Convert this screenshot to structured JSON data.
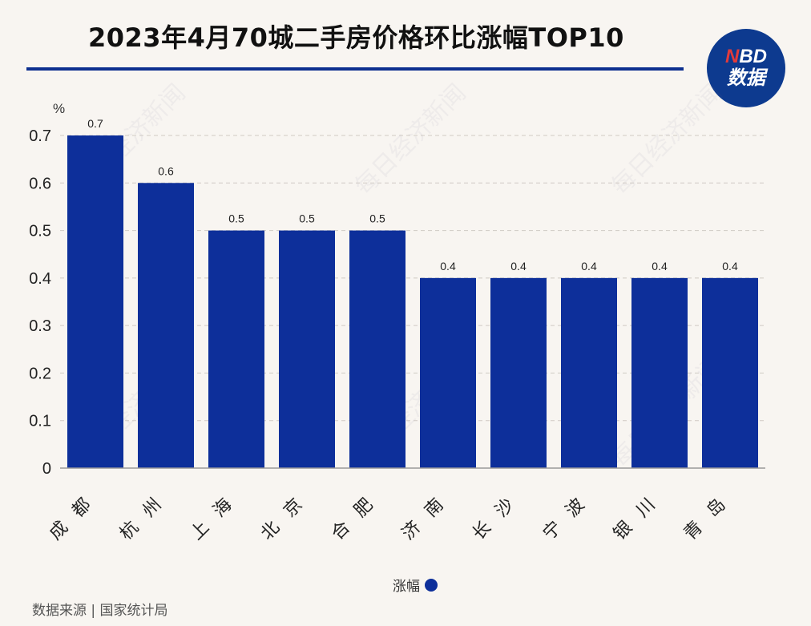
{
  "header": {
    "title": "2023年4月70城二手房价格环比涨幅TOP10",
    "logo_line1_n": "N",
    "logo_line1_rest": "BD",
    "logo_line2": "数据"
  },
  "watermark_text": "每日经济新闻",
  "legend": {
    "label": "涨幅",
    "color": "#0d2f9a"
  },
  "source": "数据来源 | 国家统计局",
  "chart_data": {
    "type": "bar",
    "title": "2023年4月70城二手房价格环比涨幅TOP10",
    "unit": "%",
    "categories": [
      "成都",
      "杭州",
      "上海",
      "北京",
      "合肥",
      "济南",
      "长沙",
      "宁波",
      "银川",
      "青岛"
    ],
    "series": [
      {
        "name": "涨幅",
        "values": [
          0.7,
          0.6,
          0.5,
          0.5,
          0.5,
          0.4,
          0.4,
          0.4,
          0.4,
          0.4
        ]
      }
    ],
    "data_labels": [
      "0.7",
      "0.6",
      "0.5",
      "0.5",
      "0.5",
      "0.4",
      "0.4",
      "0.4",
      "0.4",
      "0.4"
    ],
    "ylim": [
      0,
      0.7
    ],
    "yticks": [
      "0",
      "0.1",
      "0.2",
      "0.3",
      "0.4",
      "0.5",
      "0.6",
      "0.7"
    ],
    "grid": true,
    "legend_position": "bottom-center",
    "bar_color": "#0d2f9a"
  }
}
